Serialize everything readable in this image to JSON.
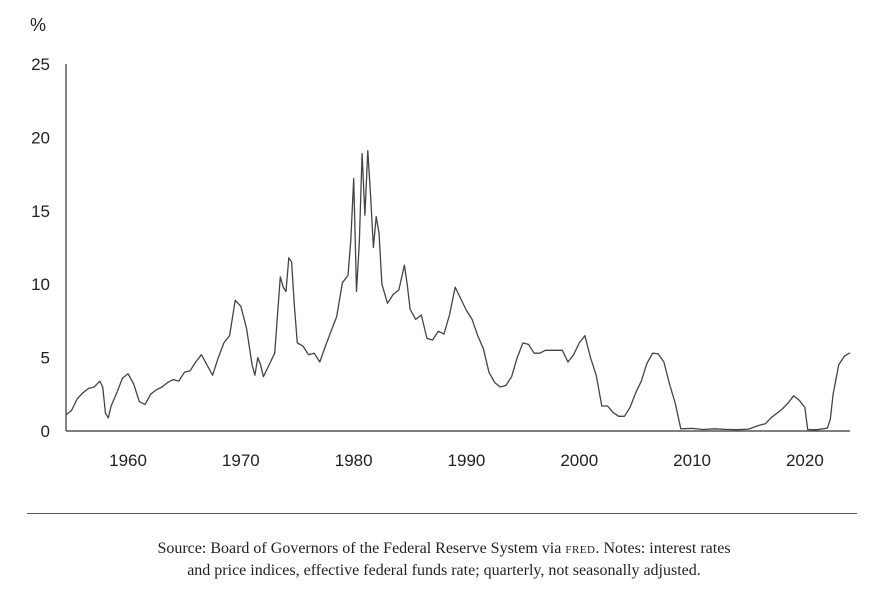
{
  "chart_data": {
    "type": "line",
    "ylabel": "%",
    "xlabel": "",
    "title": "",
    "ylim": [
      0,
      25
    ],
    "xlim": [
      1954.5,
      2024.0
    ],
    "y_ticks": [
      0,
      5,
      10,
      15,
      20,
      25
    ],
    "x_ticks": [
      1960,
      1970,
      1980,
      1990,
      2000,
      2010,
      2020
    ],
    "grid": false,
    "series": [
      {
        "name": "Effective federal funds rate",
        "x": [
          1954.5,
          1955.0,
          1955.5,
          1956.0,
          1956.5,
          1957.0,
          1957.5,
          1957.75,
          1958.0,
          1958.25,
          1958.5,
          1959.0,
          1959.5,
          1960.0,
          1960.5,
          1961.0,
          1961.5,
          1962.0,
          1962.5,
          1963.0,
          1963.5,
          1964.0,
          1964.5,
          1965.0,
          1965.5,
          1966.0,
          1966.5,
          1967.0,
          1967.5,
          1968.0,
          1968.5,
          1969.0,
          1969.5,
          1970.0,
          1970.5,
          1971.0,
          1971.25,
          1971.5,
          1971.75,
          1972.0,
          1972.5,
          1973.0,
          1973.5,
          1973.75,
          1974.0,
          1974.25,
          1974.5,
          1974.75,
          1975.0,
          1975.5,
          1976.0,
          1976.5,
          1977.0,
          1977.5,
          1978.0,
          1978.5,
          1979.0,
          1979.5,
          1979.75,
          1980.0,
          1980.25,
          1980.5,
          1980.75,
          1981.0,
          1981.25,
          1981.5,
          1981.75,
          1982.0,
          1982.25,
          1982.5,
          1983.0,
          1983.5,
          1984.0,
          1984.5,
          1984.75,
          1985.0,
          1985.5,
          1986.0,
          1986.5,
          1987.0,
          1987.5,
          1988.0,
          1988.5,
          1989.0,
          1989.5,
          1990.0,
          1990.5,
          1991.0,
          1991.5,
          1992.0,
          1992.5,
          1993.0,
          1993.5,
          1994.0,
          1994.5,
          1995.0,
          1995.5,
          1996.0,
          1996.5,
          1997.0,
          1997.5,
          1998.0,
          1998.5,
          1999.0,
          1999.5,
          2000.0,
          2000.5,
          2001.0,
          2001.5,
          2002.0,
          2002.5,
          2003.0,
          2003.5,
          2004.0,
          2004.5,
          2005.0,
          2005.5,
          2006.0,
          2006.5,
          2007.0,
          2007.5,
          2008.0,
          2008.5,
          2009.0,
          2010.0,
          2011.0,
          2012.0,
          2013.0,
          2014.0,
          2015.0,
          2016.0,
          2016.5,
          2017.0,
          2017.5,
          2018.0,
          2018.5,
          2019.0,
          2019.5,
          2020.0,
          2020.25,
          2021.0,
          2022.0,
          2022.25,
          2022.5,
          2023.0,
          2023.5,
          2024.0
        ],
        "values": [
          1.1,
          1.4,
          2.2,
          2.6,
          2.9,
          3.0,
          3.4,
          3.0,
          1.2,
          0.9,
          1.7,
          2.6,
          3.6,
          3.9,
          3.2,
          2.0,
          1.8,
          2.5,
          2.8,
          3.0,
          3.3,
          3.5,
          3.4,
          4.0,
          4.1,
          4.7,
          5.2,
          4.5,
          3.8,
          5.0,
          6.0,
          6.5,
          8.9,
          8.5,
          7.0,
          4.5,
          3.8,
          5.0,
          4.5,
          3.7,
          4.5,
          5.3,
          10.5,
          9.8,
          9.5,
          11.8,
          11.5,
          8.5,
          6.0,
          5.8,
          5.2,
          5.3,
          4.7,
          5.8,
          6.8,
          7.8,
          10.1,
          10.6,
          13.0,
          17.2,
          9.5,
          12.8,
          18.9,
          14.7,
          19.1,
          16.0,
          12.5,
          14.6,
          13.5,
          10.0,
          8.7,
          9.3,
          9.6,
          11.3,
          10.0,
          8.3,
          7.6,
          7.9,
          6.3,
          6.2,
          6.8,
          6.6,
          7.9,
          9.8,
          9.0,
          8.2,
          7.6,
          6.5,
          5.6,
          4.0,
          3.3,
          3.0,
          3.1,
          3.7,
          5.0,
          6.0,
          5.9,
          5.3,
          5.3,
          5.5,
          5.5,
          5.5,
          5.5,
          4.7,
          5.2,
          6.0,
          6.5,
          5.0,
          3.8,
          1.7,
          1.7,
          1.25,
          1.0,
          1.0,
          1.6,
          2.6,
          3.4,
          4.6,
          5.3,
          5.25,
          4.7,
          3.2,
          1.9,
          0.15,
          0.18,
          0.1,
          0.15,
          0.11,
          0.09,
          0.13,
          0.4,
          0.5,
          0.9,
          1.2,
          1.5,
          1.9,
          2.4,
          2.1,
          1.6,
          0.1,
          0.08,
          0.2,
          0.8,
          2.5,
          4.5,
          5.1,
          5.33
        ]
      }
    ]
  },
  "caption": {
    "line1_before": "Source: Board of Governors of the Federal Reserve System via ",
    "line1_sc": "fred",
    "line1_after": ". Notes: interest rates",
    "line2": "and price indices, effective federal funds rate; quarterly, not seasonally adjusted."
  },
  "colors": {
    "line": "#444444",
    "axis": "#333333",
    "text": "#222222"
  }
}
